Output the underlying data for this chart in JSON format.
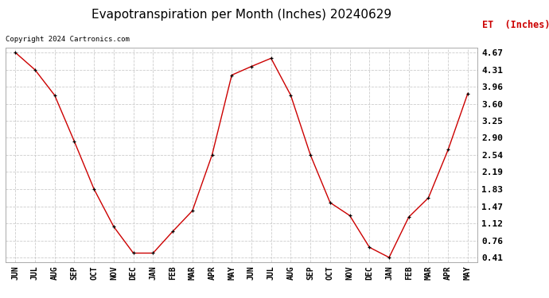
{
  "title": "Evapotranspiration per Month (Inches) 20240629",
  "ylabel": "ET  (Inches)",
  "copyright": "Copyright 2024 Cartronics.com",
  "months": [
    "JUN",
    "JUL",
    "AUG",
    "SEP",
    "OCT",
    "NOV",
    "DEC",
    "JAN",
    "FEB",
    "MAR",
    "APR",
    "MAY",
    "JUN",
    "JUL",
    "AUG",
    "SEP",
    "OCT",
    "NOV",
    "DEC",
    "JAN",
    "FEB",
    "MAR",
    "APR",
    "MAY"
  ],
  "values": [
    4.67,
    4.31,
    3.78,
    2.82,
    1.83,
    1.05,
    0.5,
    0.5,
    0.95,
    1.38,
    2.54,
    4.2,
    4.38,
    4.55,
    3.78,
    2.54,
    1.55,
    1.28,
    0.62,
    0.41,
    1.25,
    1.65,
    2.65,
    3.82
  ],
  "yticks": [
    0.41,
    0.76,
    1.12,
    1.47,
    1.83,
    2.19,
    2.54,
    2.9,
    3.25,
    3.6,
    3.96,
    4.31,
    4.67
  ],
  "line_color": "#cc0000",
  "marker_color": "#000000",
  "background_color": "#ffffff",
  "grid_color": "#cccccc",
  "title_fontsize": 11,
  "ylabel_color": "#cc0000",
  "copyright_color": "#000000",
  "copyright_fontsize": 6.5,
  "tick_fontsize": 8,
  "xtick_fontsize": 7
}
